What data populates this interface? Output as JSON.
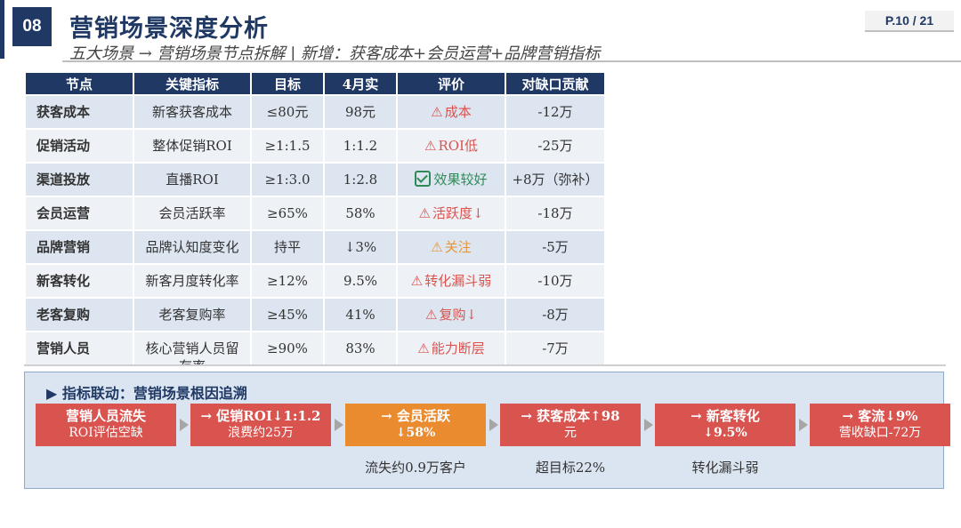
{
  "header": {
    "number": "08",
    "title": "营销场景深度分析",
    "subtitle": "五大场景 → 营销场景节点拆解 | 新增：获客成本+会员运营+品牌营销指标",
    "page": "P.10 / 21"
  },
  "table": {
    "columns": [
      "节点",
      "关键指标",
      "目标",
      "4月实",
      "评价",
      "对缺口贡献"
    ],
    "rows": [
      {
        "node": "获客成本",
        "kpi": "新客获客成本",
        "target": "≤80元",
        "actual": "98元",
        "eval_icon": "warning-icon",
        "eval": "成本",
        "eval_color": "#d9534f",
        "contribution": "-12万"
      },
      {
        "node": "促销活动",
        "kpi": "整体促销ROI",
        "target": "≥1:1.5",
        "actual": "1:1.2",
        "eval_icon": "warning-icon",
        "eval": "ROI低",
        "eval_color": "#d9534f",
        "contribution": "-25万"
      },
      {
        "node": "渠道投放",
        "kpi": "直播ROI",
        "target": "≥1:3.0",
        "actual": "1:2.8",
        "eval_icon": "check-icon",
        "eval": "效果较好",
        "eval_color": "#2e8b57",
        "contribution": "+8万（弥补）"
      },
      {
        "node": "会员运营",
        "kpi": "会员活跃率",
        "target": "≥65%",
        "actual": "58%",
        "eval_icon": "warning-icon",
        "eval": "活跃度↓",
        "eval_color": "#d9534f",
        "contribution": "-18万"
      },
      {
        "node": "品牌营销",
        "kpi": "品牌认知度变化",
        "target": "持平",
        "actual": "↓3%",
        "eval_icon": "warning-icon",
        "eval": "关注",
        "eval_color": "#e8953a",
        "contribution": "-5万"
      },
      {
        "node": "新客转化",
        "kpi": "新客月度转化率",
        "target": "≥12%",
        "actual": "9.5%",
        "eval_icon": "warning-icon",
        "eval": "转化漏斗弱",
        "eval_color": "#d9534f",
        "contribution": "-10万"
      },
      {
        "node": "老客复购",
        "kpi": "老客复购率",
        "target": "≥45%",
        "actual": "41%",
        "eval_icon": "warning-icon",
        "eval": "复购↓",
        "eval_color": "#d9534f",
        "contribution": "-8万"
      },
      {
        "node": "营销人员",
        "kpi": "核心营销人员留存率",
        "target": "≥90%",
        "actual": "83%",
        "eval_icon": "warning-icon",
        "eval": "能力断层",
        "eval_color": "#d9534f",
        "contribution": "-7万"
      }
    ]
  },
  "linkage": {
    "title": "▶ 指标联动：营销场景根因追溯",
    "boxes": [
      {
        "line1": "营销人员流失",
        "line2": "ROI评估空缺",
        "color": "#d9534f",
        "note": ""
      },
      {
        "line1": "→ 促销ROI↓1:1.2",
        "line2": "浪费约25万",
        "color": "#d9534f",
        "note": ""
      },
      {
        "line1": "→ 会员活跃",
        "line2": "↓58%",
        "color": "#ea8b2f",
        "note": "流失约0.9万客户"
      },
      {
        "line1": "→ 获客成本↑98",
        "line2": "元",
        "color": "#d9534f",
        "note": "超目标22%"
      },
      {
        "line1": "→ 新客转化",
        "line2": "↓9.5%",
        "color": "#d9534f",
        "note": "转化漏斗弱"
      },
      {
        "line1": "→ 客流↓9%",
        "line2": "营收缺口-72万",
        "color": "#d9534f",
        "note": ""
      }
    ]
  }
}
